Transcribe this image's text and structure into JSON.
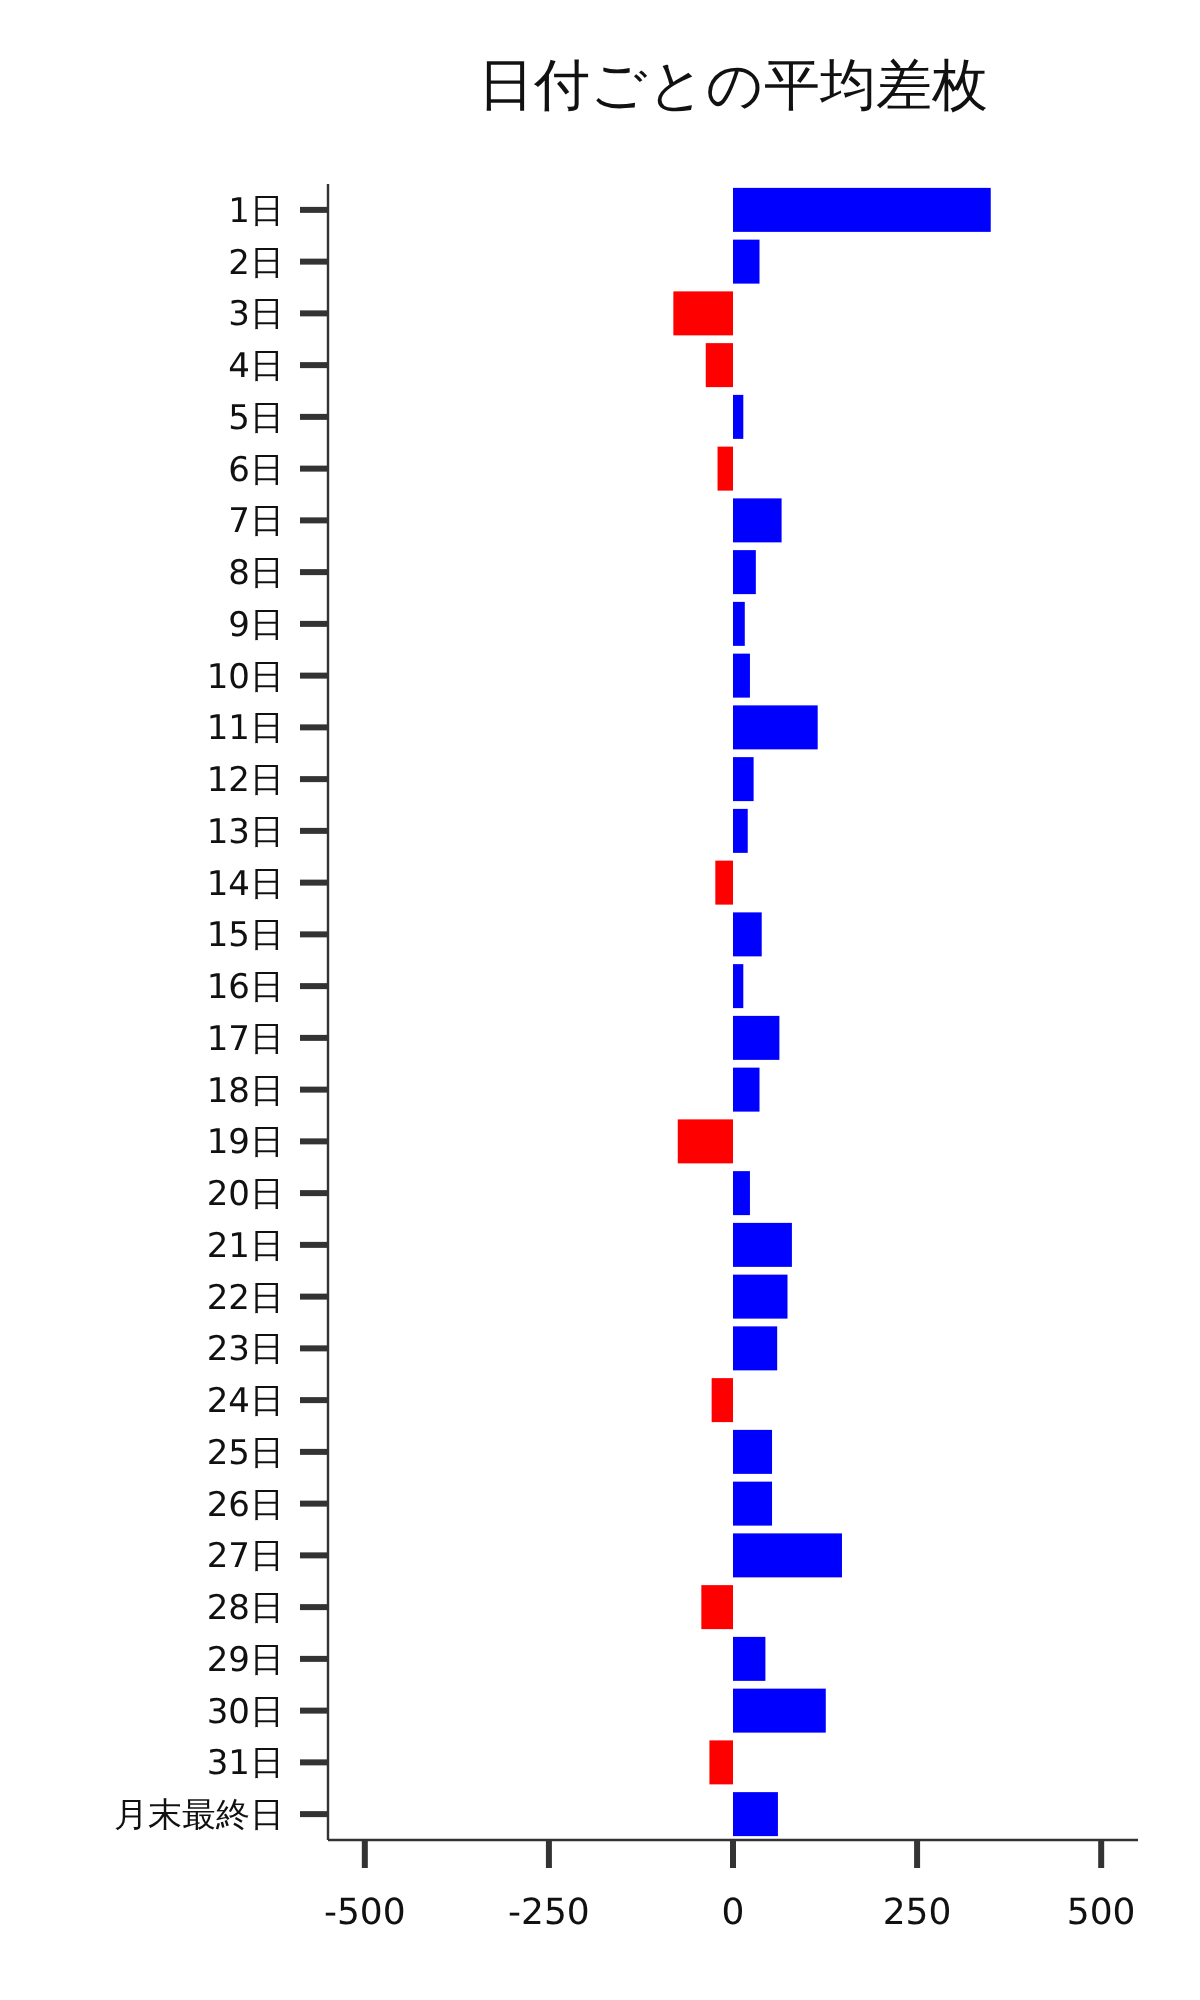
{
  "chart_data": {
    "type": "bar",
    "orientation": "horizontal",
    "title": "日付ごとの平均差枚",
    "categories": [
      "1日",
      "2日",
      "3日",
      "4日",
      "5日",
      "6日",
      "7日",
      "8日",
      "9日",
      "10日",
      "11日",
      "12日",
      "13日",
      "14日",
      "15日",
      "16日",
      "17日",
      "18日",
      "19日",
      "20日",
      "21日",
      "22日",
      "23日",
      "24日",
      "25日",
      "26日",
      "27日",
      "28日",
      "29日",
      "30日",
      "31日",
      "月末最終日"
    ],
    "values": [
      350,
      36,
      -81,
      -37,
      14,
      -21,
      66,
      31,
      16,
      23,
      115,
      28,
      20,
      -24,
      39,
      14,
      63,
      36,
      -75,
      23,
      80,
      74,
      60,
      -29,
      53,
      53,
      148,
      -43,
      44,
      126,
      -32,
      61
    ],
    "colors": [
      "#0000ff",
      "#0000ff",
      "#ff0000",
      "#ff0000",
      "#0000ff",
      "#ff0000",
      "#0000ff",
      "#0000ff",
      "#0000ff",
      "#0000ff",
      "#0000ff",
      "#0000ff",
      "#0000ff",
      "#ff0000",
      "#0000ff",
      "#0000ff",
      "#0000ff",
      "#0000ff",
      "#ff0000",
      "#0000ff",
      "#0000ff",
      "#0000ff",
      "#0000ff",
      "#ff0000",
      "#0000ff",
      "#0000ff",
      "#0000ff",
      "#ff0000",
      "#0000ff",
      "#0000ff",
      "#ff0000",
      "#0000ff"
    ],
    "xlim": [
      -550,
      550
    ],
    "xticks": [
      -500,
      -250,
      0,
      250,
      500
    ]
  }
}
